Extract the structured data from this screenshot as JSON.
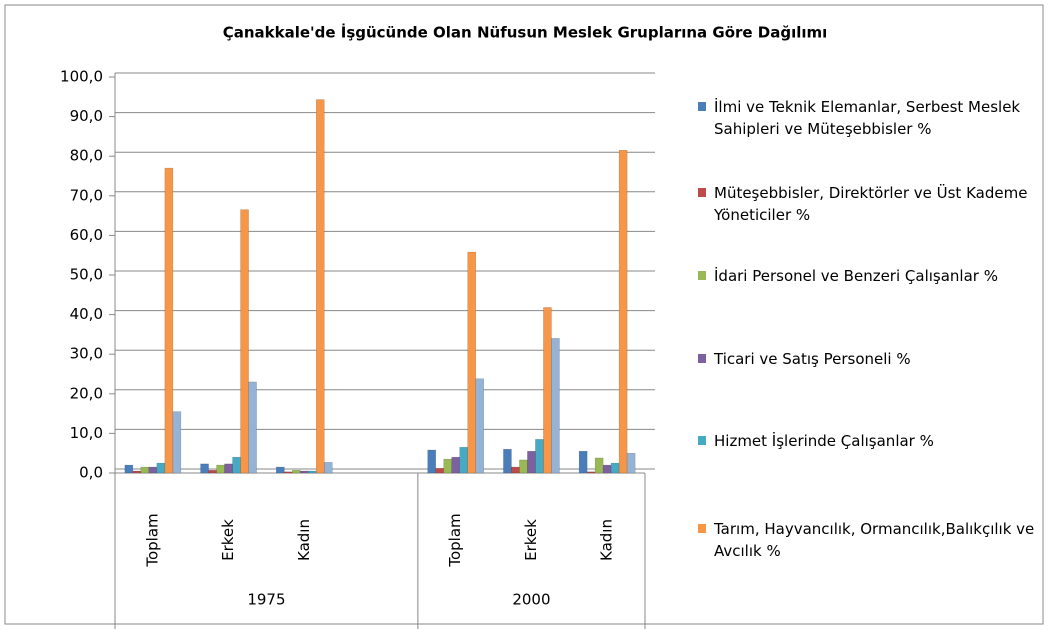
{
  "chart_data": {
    "type": "bar",
    "title": "Çanakkale'de İşgücünde Olan Nüfusun Meslek Gruplarına Göre Dağılımı",
    "category_groups": [
      {
        "label": "1975",
        "categories": [
          "Toplam",
          "Erkek",
          "Kadın",
          null
        ]
      },
      {
        "label": "2000",
        "categories": [
          "Toplam",
          "Erkek",
          "Kadın"
        ]
      }
    ],
    "series": [
      {
        "name": "İlmi ve Teknik Elemanlar, Serbest Meslek Sahipleri ve Müteşebbisler %",
        "color": "#4a7ebb",
        "values": [
          2.0,
          2.3,
          1.5,
          null,
          5.8,
          6.0,
          5.5
        ]
      },
      {
        "name": "Müteşebbisler, Direktörler ve Üst Kademe Yöneticiler %",
        "color": "#be4b48",
        "values": [
          0.5,
          0.7,
          0.3,
          null,
          1.2,
          1.5,
          0.3
        ]
      },
      {
        "name": "İdari Personel ve Benzeri Çalışanlar %",
        "color": "#98b954",
        "values": [
          1.5,
          2.0,
          0.7,
          null,
          3.5,
          3.3,
          3.8
        ]
      },
      {
        "name": "Ticari ve Satış Personeli %",
        "color": "#7d60a0",
        "values": [
          1.5,
          2.3,
          0.5,
          null,
          4.0,
          5.5,
          2.0
        ]
      },
      {
        "name": "Hizmet İşlerinde Çalışanlar %",
        "color": "#46aac5",
        "values": [
          2.5,
          4.0,
          0.5,
          null,
          6.5,
          8.5,
          2.5
        ]
      },
      {
        "name": "Tarım, Hayvancılık, Ormancılık,Balıkçılık ve Avcılık %",
        "color": "#f79646",
        "values": [
          77.0,
          66.5,
          94.3,
          null,
          55.8,
          41.8,
          81.5
        ]
      },
      {
        "color": "#95b3d7",
        "values": [
          15.5,
          23.0,
          2.7,
          null,
          23.8,
          34.0,
          5.0
        ]
      }
    ],
    "ylim": [
      0,
      100
    ],
    "yticks": [
      {
        "value": 0,
        "label": "0,0"
      },
      {
        "value": 10,
        "label": "10,0"
      },
      {
        "value": 20,
        "label": "20,0"
      },
      {
        "value": 30,
        "label": "30,0"
      },
      {
        "value": 40,
        "label": "40,0"
      },
      {
        "value": 50,
        "label": "50,0"
      },
      {
        "value": 60,
        "label": "60,0"
      },
      {
        "value": 70,
        "label": "70,0"
      },
      {
        "value": 80,
        "label": "80,0"
      },
      {
        "value": 90,
        "label": "90,0"
      },
      {
        "value": 100,
        "label": "100,0"
      }
    ],
    "grid": true
  }
}
